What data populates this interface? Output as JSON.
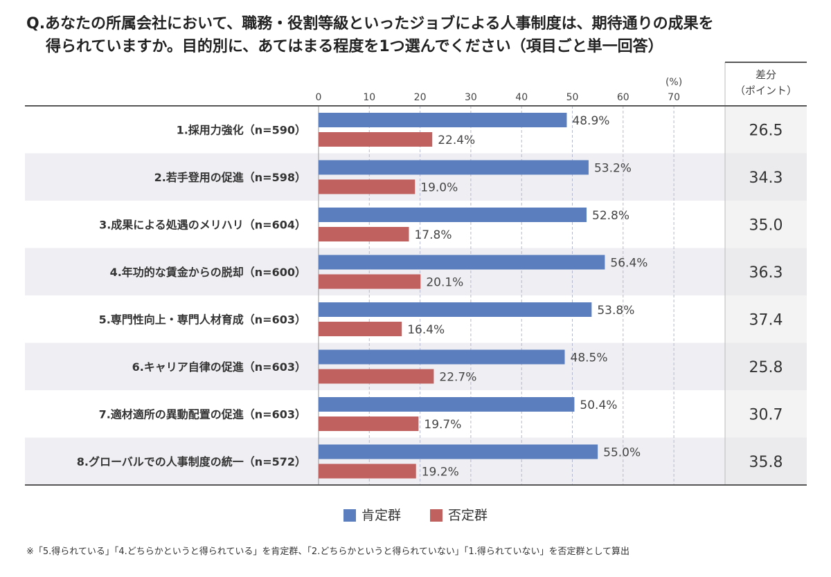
{
  "title_line1": "Q.あなたの所属会社において、職務・役割等級といったジョブによる人事制度は、期待通りの成果を",
  "title_line2": "得られていますか。目的別に、あてはまる程度を1つ選んでください（項目ごと単一回答）",
  "diff_header": [
    "差分",
    "（ポイント）"
  ],
  "unit_label": "(%)",
  "footnote": "※「5.得られている」「4.どちらかというと得られている」を肯定群、「2.どちらかというと得られていない」「1.得られていない」を否定群として算出",
  "colors": {
    "positive": "#5b7fbe",
    "negative": "#c0605f",
    "row_shade": "#efeff3",
    "diff_col": "#f3f3f3"
  },
  "chart_data": {
    "type": "bar",
    "orientation": "horizontal",
    "xlim": [
      0,
      70
    ],
    "xticks": [
      0,
      10,
      20,
      30,
      40,
      50,
      60,
      70
    ],
    "grid": true,
    "legend_position": "bottom",
    "categories": [
      "1.採用力強化（n=590）",
      "2.若手登用の促進（n=598）",
      "3.成果による処遇のメリハリ（n=604）",
      "4.年功的な賃金からの脱却（n=600）",
      "5.専門性向上・専門人材育成（n=603）",
      "6.キャリア自律の促進（n=603）",
      "7.適材適所の異動配置の促進（n=603）",
      "8.グローバルでの人事制度の統一（n=572）"
    ],
    "series": [
      {
        "name": "肯定群",
        "values": [
          48.9,
          53.2,
          52.8,
          56.4,
          53.8,
          48.5,
          50.4,
          55.0
        ],
        "labels": [
          "48.9%",
          "53.2%",
          "52.8%",
          "56.4%",
          "53.8%",
          "48.5%",
          "50.4%",
          "55.0%"
        ]
      },
      {
        "name": "否定群",
        "values": [
          22.4,
          19.0,
          17.8,
          20.1,
          16.4,
          22.7,
          19.7,
          19.2
        ],
        "labels": [
          "22.4%",
          "19.0%",
          "17.8%",
          "20.1%",
          "16.4%",
          "22.7%",
          "19.7%",
          "19.2%"
        ]
      }
    ],
    "diff": [
      "26.5",
      "34.3",
      "35.0",
      "36.3",
      "37.4",
      "25.8",
      "30.7",
      "35.8"
    ]
  }
}
